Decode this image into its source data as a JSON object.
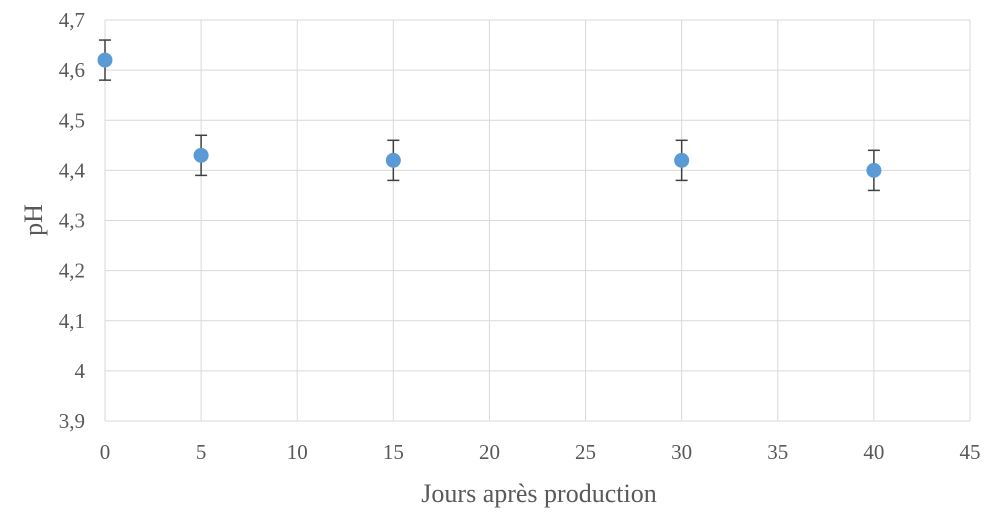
{
  "chart_data": {
    "type": "scatter",
    "xlabel": "Jours après production",
    "ylabel": "pH",
    "xlim": [
      0,
      45
    ],
    "ylim": [
      3.9,
      4.7
    ],
    "x_ticks": [
      0,
      5,
      10,
      15,
      20,
      25,
      30,
      35,
      40,
      45
    ],
    "x_tick_labels": [
      "0",
      "5",
      "10",
      "15",
      "20",
      "25",
      "30",
      "35",
      "40",
      "45"
    ],
    "y_ticks": [
      3.9,
      4.0,
      4.1,
      4.2,
      4.3,
      4.4,
      4.5,
      4.6,
      4.7
    ],
    "y_tick_labels": [
      "3,9",
      "4",
      "4,1",
      "4,2",
      "4,3",
      "4,4",
      "4,5",
      "4,6",
      "4,7"
    ],
    "grid": true,
    "legend": "none",
    "series": [
      {
        "color": "#5b9bd5",
        "points": [
          {
            "x": 0,
            "y": 4.62,
            "err": 0.04
          },
          {
            "x": 5,
            "y": 4.43,
            "err": 0.04
          },
          {
            "x": 15,
            "y": 4.42,
            "err": 0.04
          },
          {
            "x": 30,
            "y": 4.42,
            "err": 0.04
          },
          {
            "x": 40,
            "y": 4.4,
            "err": 0.04
          }
        ]
      }
    ]
  }
}
